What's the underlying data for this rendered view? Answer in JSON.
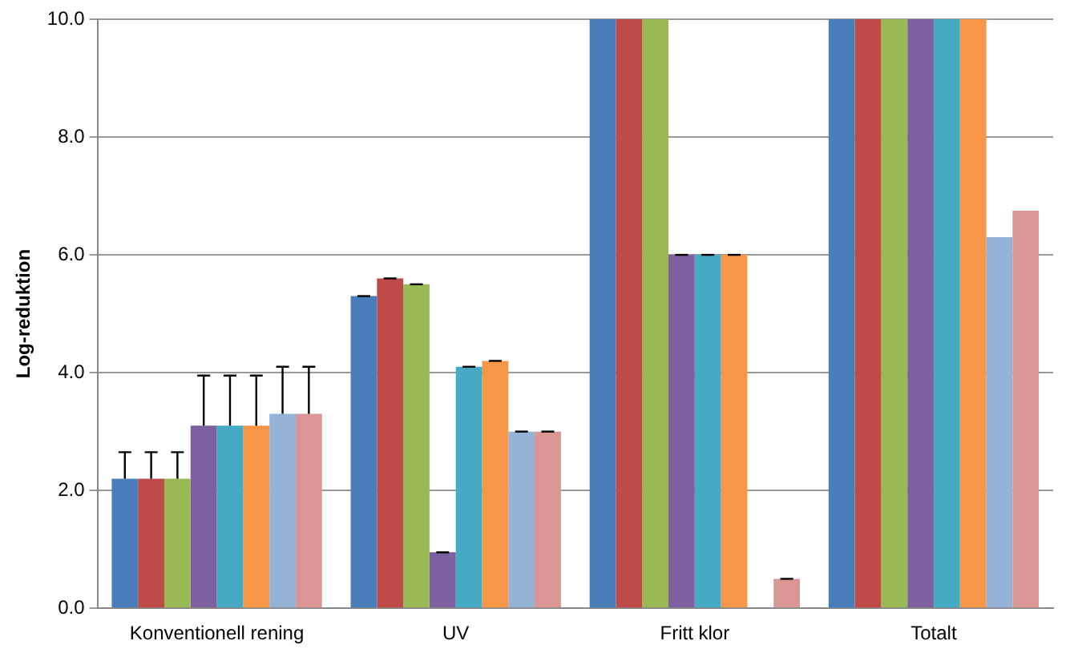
{
  "chart_data": {
    "type": "bar",
    "ylabel": "Log-reduktion",
    "categories": [
      "Konventionell rening",
      "UV",
      "Fritt klor",
      "Totalt"
    ],
    "series": [
      {
        "color": "#4a7ebb",
        "values": [
          2.2,
          5.3,
          10,
          10
        ],
        "errors": [
          0.45,
          0,
          null,
          null
        ]
      },
      {
        "color": "#be4b48",
        "values": [
          2.2,
          5.6,
          10,
          10
        ],
        "errors": [
          0.45,
          0,
          null,
          null
        ]
      },
      {
        "color": "#98b954",
        "values": [
          2.2,
          5.5,
          10,
          10
        ],
        "errors": [
          0.45,
          0,
          null,
          null
        ]
      },
      {
        "color": "#7d60a0",
        "values": [
          3.1,
          0.95,
          6,
          10
        ],
        "errors": [
          0.85,
          0,
          0,
          null
        ]
      },
      {
        "color": "#46aac5",
        "values": [
          3.1,
          4.1,
          6,
          10
        ],
        "errors": [
          0.85,
          0,
          0,
          null
        ]
      },
      {
        "color": "#f79646",
        "values": [
          3.1,
          4.2,
          6,
          10
        ],
        "errors": [
          0.85,
          0,
          0,
          null
        ]
      },
      {
        "color": "#95b3d7",
        "values": [
          3.3,
          3.0,
          0,
          6.3
        ],
        "errors": [
          0.8,
          0,
          null,
          null
        ]
      },
      {
        "color": "#d99694",
        "values": [
          3.3,
          3.0,
          0.5,
          6.75
        ],
        "errors": [
          0.8,
          0,
          0,
          null
        ]
      }
    ],
    "ylim": [
      0,
      10
    ],
    "yticks": [
      {
        "value": 0,
        "label": "0.0"
      },
      {
        "value": 2,
        "label": "2.0"
      },
      {
        "value": 4,
        "label": "4.0"
      },
      {
        "value": 6,
        "label": "6.0"
      },
      {
        "value": 8,
        "label": "8.0"
      },
      {
        "value": 10,
        "label": "10.0"
      }
    ],
    "grid": "y",
    "legend": false
  }
}
